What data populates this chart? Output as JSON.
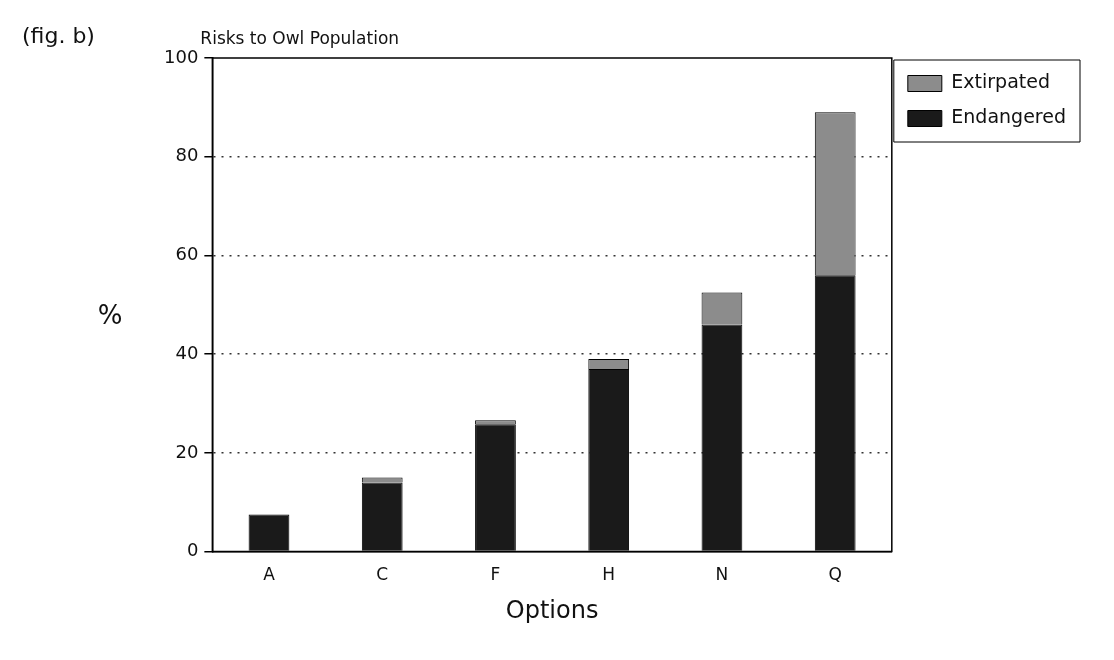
{
  "chart_data": {
    "type": "bar",
    "title": "Risks to Owl Population",
    "xlabel": "Options",
    "ylabel": "%",
    "annotations": [
      "(fig. b)"
    ],
    "categories": [
      "A",
      "C",
      "F",
      "H",
      "N",
      "Q"
    ],
    "stacked": true,
    "series": [
      {
        "name": "Endangered",
        "color": "#1a1a1a",
        "values": [
          7.5,
          14,
          25.8,
          37,
          46,
          56
        ]
      },
      {
        "name": "Extirpated",
        "color": "#8c8c8c",
        "values": [
          0,
          1,
          0.8,
          2,
          6.5,
          33
        ]
      }
    ],
    "ylim": [
      0,
      100
    ],
    "yticks": [
      0,
      20,
      40,
      60,
      80,
      100
    ],
    "grid": "y",
    "legend": "top right"
  }
}
